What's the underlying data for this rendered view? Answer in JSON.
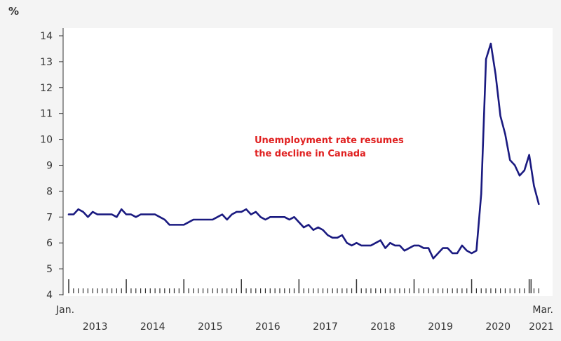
{
  "chart_data": {
    "type": "line",
    "y_unit": "%",
    "ylim": [
      4,
      14
    ],
    "y_ticks": [
      4,
      5,
      6,
      7,
      8,
      9,
      10,
      11,
      12,
      13,
      14
    ],
    "x_start": "2013-01",
    "x_end": "2021-03",
    "x_year_labels": [
      "2013",
      "2014",
      "2015",
      "2016",
      "2017",
      "2018",
      "2019",
      "2020",
      "2021"
    ],
    "x_start_label": "Jan.",
    "x_end_label": "Mar.",
    "annotation": [
      "Unemployment rate resumes",
      "the decline in Canada"
    ],
    "grid": false,
    "colors": {
      "line": "#1a1a80",
      "annotation": "#e02020",
      "axis": "#333333",
      "background": "#ffffff",
      "page": "#f4f4f4"
    },
    "series": [
      {
        "values": [
          7.1,
          7.1,
          7.3,
          7.2,
          7.0,
          7.2,
          7.1,
          7.1,
          7.1,
          7.1,
          7.0,
          7.3,
          7.1,
          7.1,
          7.0,
          7.1,
          7.1,
          7.1,
          7.1,
          7.0,
          6.9,
          6.7,
          6.7,
          6.7,
          6.7,
          6.8,
          6.9,
          6.9,
          6.9,
          6.9,
          6.9,
          7.0,
          7.1,
          6.9,
          7.1,
          7.2,
          7.2,
          7.3,
          7.1,
          7.2,
          7.0,
          6.9,
          7.0,
          7.0,
          7.0,
          7.0,
          6.9,
          7.0,
          6.8,
          6.6,
          6.7,
          6.5,
          6.6,
          6.5,
          6.3,
          6.2,
          6.2,
          6.3,
          6.0,
          5.9,
          6.0,
          5.9,
          5.9,
          5.9,
          6.0,
          6.1,
          5.8,
          6.0,
          5.9,
          5.9,
          5.7,
          5.8,
          5.9,
          5.9,
          5.8,
          5.8,
          5.4,
          5.6,
          5.8,
          5.8,
          5.6,
          5.6,
          5.9,
          5.7,
          5.6,
          5.7,
          7.9,
          13.1,
          13.7,
          12.5,
          10.9,
          10.2,
          9.2,
          9.0,
          8.6,
          8.8,
          9.4,
          8.2,
          7.5
        ]
      }
    ]
  }
}
